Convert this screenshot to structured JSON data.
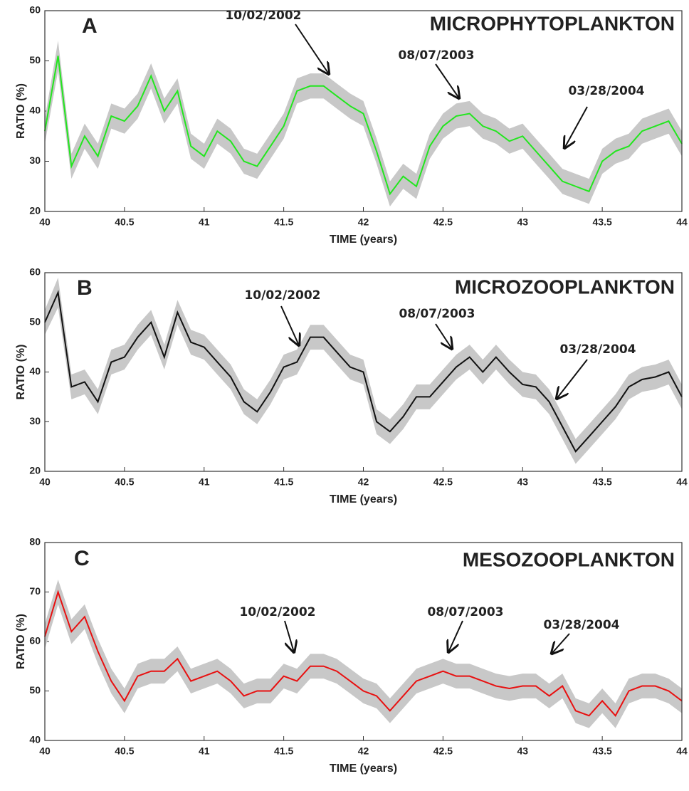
{
  "chart_data": [
    {
      "type": "line",
      "panel_label": "A",
      "title": "MICROPHYTOPLANKTON",
      "x_label": "TIME (years)",
      "y_label": "RATIO (%)",
      "x": [
        40,
        40.083,
        40.167,
        40.25,
        40.333,
        40.417,
        40.5,
        40.583,
        40.667,
        40.75,
        40.833,
        40.917,
        41,
        41.083,
        41.167,
        41.25,
        41.333,
        41.417,
        41.5,
        41.583,
        41.667,
        41.75,
        41.833,
        41.917,
        42,
        42.083,
        42.167,
        42.25,
        42.333,
        42.417,
        42.5,
        42.583,
        42.667,
        42.75,
        42.833,
        42.917,
        43,
        43.083,
        43.167,
        43.25,
        43.333,
        43.417,
        43.5,
        43.583,
        43.667,
        43.75,
        43.833,
        43.917,
        44
      ],
      "series": [
        {
          "color": "#22e61e",
          "band_color": "#c8c8c8",
          "values": [
            36,
            51,
            29,
            35,
            31,
            39,
            38,
            41,
            47,
            40,
            44,
            33,
            31,
            36,
            34,
            30,
            29,
            33,
            37,
            44,
            45,
            45,
            43,
            41,
            39.5,
            32,
            23.5,
            27,
            25,
            33,
            37,
            39,
            39.5,
            37,
            36,
            34,
            35,
            32,
            29,
            26,
            25,
            24,
            30,
            32,
            33,
            36,
            37,
            38,
            33.5
          ],
          "errors": [
            2.5,
            3,
            2.5,
            2.5,
            2.5,
            2.5,
            2.5,
            2.5,
            2.5,
            2.5,
            2.5,
            2.5,
            2.5,
            2.5,
            2.5,
            2.5,
            2.5,
            2.5,
            2.5,
            2.5,
            2.5,
            2.5,
            2.5,
            2.5,
            2.5,
            2.5,
            2.5,
            2.5,
            2.5,
            2.5,
            2.5,
            2.5,
            2.5,
            2.5,
            2.5,
            2.5,
            2.5,
            2.5,
            2.5,
            2.5,
            2.5,
            2.5,
            2.5,
            2.5,
            2.5,
            2.5,
            2.5,
            2.5,
            2.5
          ]
        }
      ],
      "xlim": [
        40,
        44
      ],
      "xticks": [
        40,
        40.5,
        41,
        41.5,
        42,
        42.5,
        43,
        43.5,
        44
      ],
      "ylim": [
        20,
        60
      ],
      "yticks": [
        20,
        30,
        40,
        50,
        60
      ],
      "annotations": [
        {
          "text": "10/02/2002"
        },
        {
          "text": "08/07/2003"
        },
        {
          "text": "03/28/2004"
        }
      ]
    },
    {
      "type": "line",
      "panel_label": "B",
      "title": "MICROZOOPLANKTON",
      "x_label": "TIME (years)",
      "y_label": "RATIO (%)",
      "x": [
        40,
        40.083,
        40.167,
        40.25,
        40.333,
        40.417,
        40.5,
        40.583,
        40.667,
        40.75,
        40.833,
        40.917,
        41,
        41.083,
        41.167,
        41.25,
        41.333,
        41.417,
        41.5,
        41.583,
        41.667,
        41.75,
        41.833,
        41.917,
        42,
        42.083,
        42.167,
        42.25,
        42.333,
        42.417,
        42.5,
        42.583,
        42.667,
        42.75,
        42.833,
        42.917,
        43,
        43.083,
        43.167,
        43.25,
        43.333,
        43.417,
        43.5,
        43.583,
        43.667,
        43.75,
        43.833,
        43.917,
        44
      ],
      "series": [
        {
          "color": "#111111",
          "band_color": "#c8c8c8",
          "values": [
            50,
            56,
            37,
            38,
            34,
            42,
            43,
            47,
            50,
            43,
            52,
            46,
            45,
            42,
            39,
            34,
            32,
            36,
            41,
            42,
            47,
            47,
            44,
            41,
            40,
            30,
            28,
            31,
            35,
            35,
            38,
            41,
            43,
            40,
            43,
            40,
            37.5,
            37,
            34,
            29,
            24,
            27,
            30,
            33,
            37,
            38.5,
            39,
            40,
            35
          ],
          "errors": [
            2.5,
            3,
            2.5,
            2.5,
            2.5,
            2.5,
            2.5,
            2.5,
            2.5,
            2.5,
            2.5,
            2.5,
            2.5,
            2.5,
            2.5,
            2.5,
            2.5,
            2.5,
            2.5,
            2.5,
            2.5,
            2.5,
            2.5,
            2.5,
            2.5,
            2.5,
            2.5,
            2.5,
            2.5,
            2.5,
            2.5,
            2.5,
            2.5,
            2.5,
            2.5,
            2.5,
            2.5,
            2.5,
            2.5,
            2.5,
            2.5,
            2.5,
            2.5,
            2.5,
            2.5,
            2.5,
            2.5,
            2.5,
            2.5
          ]
        }
      ],
      "xlim": [
        40,
        44
      ],
      "xticks": [
        40,
        40.5,
        41,
        41.5,
        42,
        42.5,
        43,
        43.5,
        44
      ],
      "ylim": [
        20,
        60
      ],
      "yticks": [
        20,
        30,
        40,
        50,
        60
      ],
      "annotations": [
        {
          "text": "10/02/2002"
        },
        {
          "text": "08/07/2003"
        },
        {
          "text": "03/28/2004"
        }
      ]
    },
    {
      "type": "line",
      "panel_label": "C",
      "title": "MESOZOOPLANKTON",
      "x_label": "TIME (years)",
      "y_label": "RATIO (%)",
      "x": [
        40,
        40.083,
        40.167,
        40.25,
        40.333,
        40.417,
        40.5,
        40.583,
        40.667,
        40.75,
        40.833,
        40.917,
        41,
        41.083,
        41.167,
        41.25,
        41.333,
        41.417,
        41.5,
        41.583,
        41.667,
        41.75,
        41.833,
        41.917,
        42,
        42.083,
        42.167,
        42.25,
        42.333,
        42.417,
        42.5,
        42.583,
        42.667,
        42.75,
        42.833,
        42.917,
        43,
        43.083,
        43.167,
        43.25,
        43.333,
        43.417,
        43.5,
        43.583,
        43.667,
        43.75,
        43.833,
        43.917,
        44
      ],
      "series": [
        {
          "color": "#e81010",
          "band_color": "#c8c8c8",
          "values": [
            61,
            70,
            62,
            65,
            58,
            52,
            48,
            53,
            54,
            54,
            56.5,
            52,
            53,
            54,
            52,
            49,
            50,
            50,
            53,
            52,
            55,
            55,
            54,
            52,
            50,
            49,
            46,
            49,
            52,
            53,
            54,
            53,
            53,
            52,
            51,
            50.5,
            51,
            51,
            49,
            51,
            46,
            45,
            48,
            45,
            50,
            51,
            51,
            50,
            48
          ],
          "errors": [
            2.5,
            2.5,
            2.5,
            2.5,
            2.5,
            2.5,
            2.5,
            2.5,
            2.5,
            2.5,
            2.5,
            2.5,
            2.5,
            2.5,
            2.5,
            2.5,
            2.5,
            2.5,
            2.5,
            2.5,
            2.5,
            2.5,
            2.5,
            2.5,
            2.5,
            2.5,
            2.5,
            2.5,
            2.5,
            2.5,
            2.5,
            2.5,
            2.5,
            2.5,
            2.5,
            2.5,
            2.5,
            2.5,
            2.5,
            2.5,
            2.5,
            2.5,
            2.5,
            2.5,
            2.5,
            2.5,
            2.5,
            2.5,
            2.5
          ]
        }
      ],
      "xlim": [
        40,
        44
      ],
      "xticks": [
        40,
        40.5,
        41,
        41.5,
        42,
        42.5,
        43,
        43.5,
        44
      ],
      "ylim": [
        40,
        80
      ],
      "yticks": [
        40,
        50,
        60,
        70,
        80
      ],
      "annotations": [
        {
          "text": "10/02/2002"
        },
        {
          "text": "08/07/2003"
        },
        {
          "text": "03/28/2004"
        }
      ]
    }
  ]
}
